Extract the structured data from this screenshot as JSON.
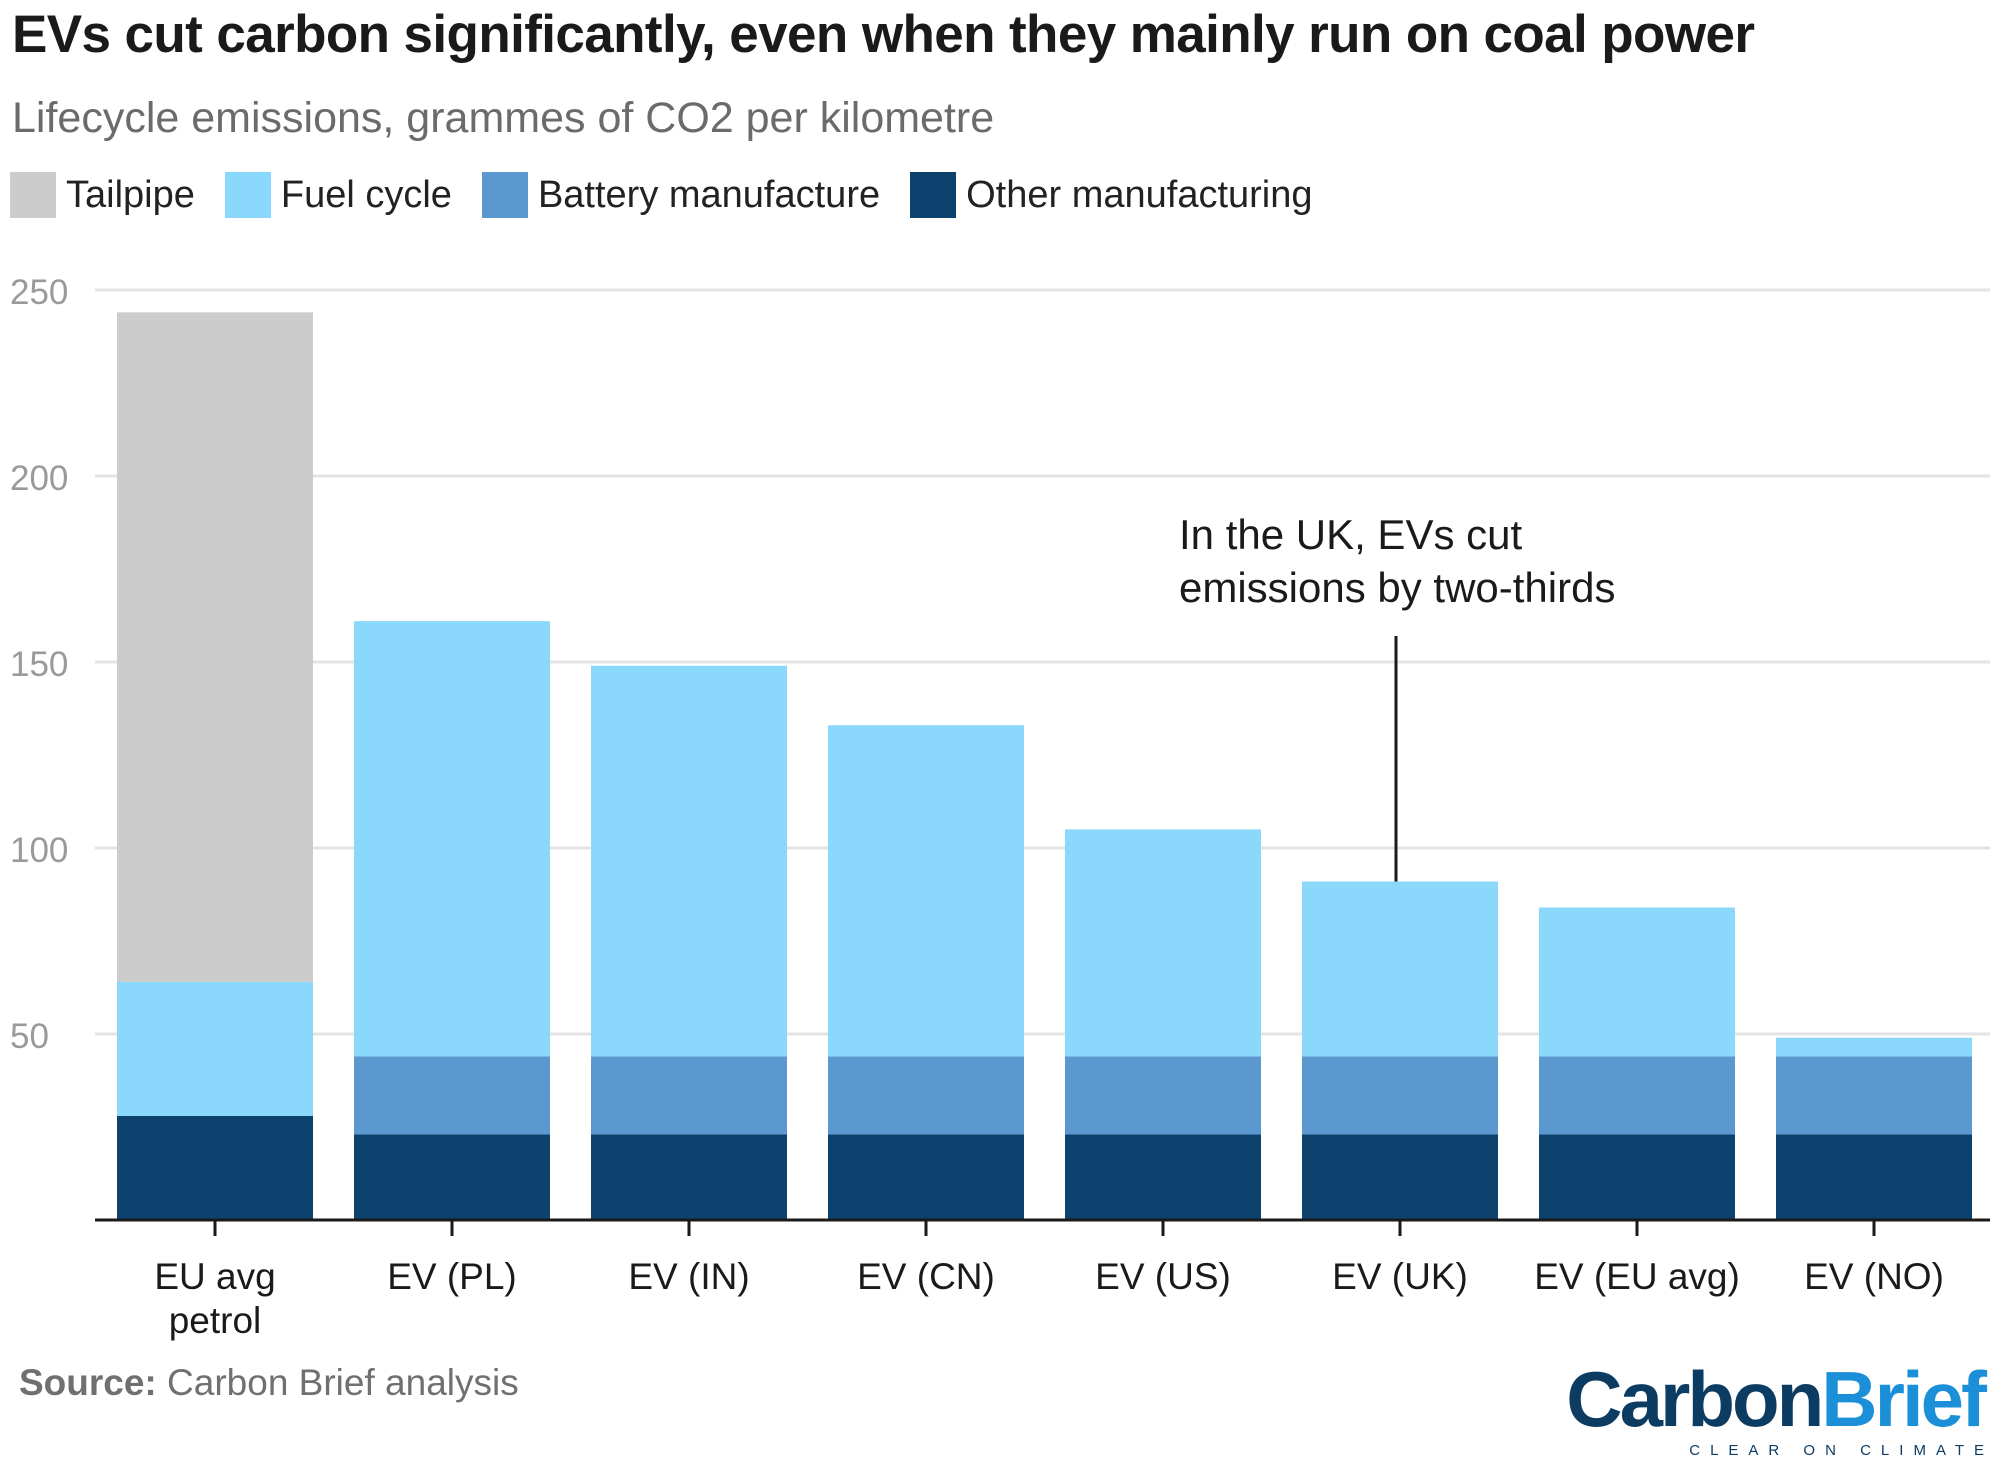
{
  "title": "EVs cut carbon significantly, even when they mainly run on coal power",
  "subtitle": "Lifecycle emissions, grammes of CO2 per kilometre",
  "legend": [
    {
      "label": "Tailpipe",
      "color": "#cccccc"
    },
    {
      "label": "Fuel cycle",
      "color": "#8ad9fc"
    },
    {
      "label": "Battery manufacture",
      "color": "#5b98d0"
    },
    {
      "label": "Other manufacturing",
      "color": "#0d426f"
    }
  ],
  "source": {
    "label": "Source:",
    "text": "Carbon Brief analysis"
  },
  "logo": {
    "carbon": "Carbon",
    "brief": "Brief",
    "tagline": "CLEAR ON CLIMATE"
  },
  "chart_data": {
    "type": "bar",
    "stacked": true,
    "categories": [
      [
        "EU avg",
        "petrol"
      ],
      [
        "EV (PL)"
      ],
      [
        "EV (IN)"
      ],
      [
        "EV (CN)"
      ],
      [
        "EV (US)"
      ],
      [
        "EV (UK)"
      ],
      [
        "EV (EU avg)"
      ],
      [
        "EV (NO)"
      ]
    ],
    "series": [
      {
        "name": "Other manufacturing",
        "color": "#0d426f",
        "values": [
          28,
          23,
          23,
          23,
          23,
          23,
          23,
          23
        ]
      },
      {
        "name": "Battery manufacture",
        "color": "#5b98d0",
        "values": [
          0,
          21,
          21,
          21,
          21,
          21,
          21,
          21
        ]
      },
      {
        "name": "Fuel cycle",
        "color": "#8ad9fc",
        "values": [
          36,
          117,
          105,
          89,
          61,
          47,
          40,
          5
        ]
      },
      {
        "name": "Tailpipe",
        "color": "#cccccc",
        "values": [
          180,
          0,
          0,
          0,
          0,
          0,
          0,
          0
        ]
      }
    ],
    "ylim": [
      0,
      250
    ],
    "yticks": [
      50,
      100,
      150,
      200,
      250
    ],
    "grid": true,
    "xlabel": "",
    "ylabel": "",
    "annotation": {
      "lines": [
        "In the UK, EVs cut",
        "emissions by two-thirds"
      ],
      "category_index": 5
    }
  }
}
